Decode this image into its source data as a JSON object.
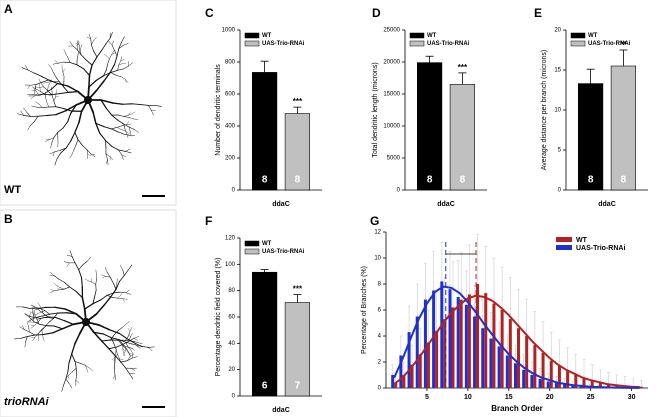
{
  "images": [
    {
      "letter": "A",
      "label": "WT"
    },
    {
      "letter": "B",
      "label": "trioRNAi"
    }
  ],
  "chart_data": [
    {
      "type": "bar",
      "letter": "C",
      "ylabel": "Number of dendritic terminals",
      "categories": [
        "ddaC"
      ],
      "ylim": [
        0,
        1000
      ],
      "yticks": [
        0,
        200,
        400,
        600,
        800,
        1000
      ],
      "series": [
        {
          "name": "WT",
          "color": "#000000",
          "values": [
            735
          ],
          "errors": [
            70
          ],
          "n": [
            "8"
          ]
        },
        {
          "name": "UAS-Trio-RNAi",
          "color": "#c0c0c0",
          "values": [
            478
          ],
          "errors": [
            40
          ],
          "n": [
            "8"
          ],
          "annotation": "***"
        }
      ]
    },
    {
      "type": "bar",
      "letter": "D",
      "ylabel": "Total dendritic length (microns)",
      "categories": [
        "ddaC"
      ],
      "ylim": [
        0,
        25000
      ],
      "yticks": [
        0,
        5000,
        10000,
        15000,
        20000,
        25000
      ],
      "series": [
        {
          "name": "WT",
          "color": "#000000",
          "values": [
            19900
          ],
          "errors": [
            1000
          ],
          "n": [
            "8"
          ]
        },
        {
          "name": "UAS-Trio-RNAi",
          "color": "#c0c0c0",
          "values": [
            16500
          ],
          "errors": [
            1800
          ],
          "n": [
            "8"
          ],
          "annotation": "***"
        }
      ]
    },
    {
      "type": "bar",
      "letter": "E",
      "ylabel": "Average distance per branch (microns)",
      "categories": [
        "ddaC"
      ],
      "ylim": [
        0,
        20
      ],
      "yticks": [
        0,
        5,
        10,
        15,
        20
      ],
      "series": [
        {
          "name": "WT",
          "color": "#000000",
          "values": [
            13.3
          ],
          "errors": [
            1.8
          ],
          "n": [
            "8"
          ]
        },
        {
          "name": "UAS-Trio-RNAi",
          "color": "#c0c0c0",
          "values": [
            15.5
          ],
          "errors": [
            2.0
          ],
          "n": [
            "8"
          ],
          "annotation": "**"
        }
      ]
    },
    {
      "type": "bar",
      "letter": "F",
      "ylabel": "Percentage dendritic field covered (%)",
      "categories": [
        "ddaC"
      ],
      "ylim": [
        0,
        120
      ],
      "yticks": [
        0,
        20,
        40,
        60,
        80,
        100,
        120
      ],
      "series": [
        {
          "name": "WT",
          "color": "#000000",
          "values": [
            94
          ],
          "errors": [
            2
          ],
          "n": [
            "6"
          ]
        },
        {
          "name": "UAS-Trio-RNAi",
          "color": "#c0c0c0",
          "values": [
            71
          ],
          "errors": [
            6
          ],
          "n": [
            "7"
          ],
          "annotation": "***"
        }
      ]
    },
    {
      "type": "distribution",
      "letter": "G",
      "xlabel": "Branch Order",
      "ylabel": "Percentage of Branches (%)",
      "xlim": [
        0,
        32
      ],
      "xticks": [
        5,
        10,
        15,
        20,
        25,
        30
      ],
      "ylim": [
        0,
        12
      ],
      "yticks": [
        0,
        2,
        4,
        6,
        8,
        10,
        12
      ],
      "x": [
        1,
        2,
        3,
        4,
        5,
        6,
        7,
        8,
        9,
        10,
        11,
        12,
        13,
        14,
        15,
        16,
        17,
        18,
        19,
        20,
        21,
        22,
        23,
        24,
        25,
        26,
        27,
        28,
        29,
        30,
        31
      ],
      "series": [
        {
          "name": "WT",
          "color": "#b22222",
          "mean": 11,
          "values": [
            0.4,
            1.0,
            1.8,
            2.6,
            3.5,
            4.4,
            5.3,
            6.2,
            6.8,
            7.2,
            8.0,
            7.3,
            6.5,
            6.0,
            5.3,
            4.6,
            4.0,
            3.3,
            2.7,
            2.1,
            1.7,
            1.3,
            1.0,
            0.8,
            0.6,
            0.4,
            0.3,
            0.2,
            0.2,
            0.1,
            0.1
          ],
          "errors": [
            0.5,
            1.0,
            1.5,
            2.0,
            2.5,
            3.0,
            3.2,
            3.5,
            3.6,
            3.8,
            3.8,
            3.6,
            3.5,
            3.3,
            3.2,
            3.0,
            2.8,
            2.6,
            2.4,
            2.2,
            2.0,
            1.8,
            1.6,
            1.4,
            1.2,
            1.0,
            0.9,
            0.8,
            0.7,
            0.6,
            0.5
          ],
          "fit": [
            0.3,
            0.8,
            1.5,
            2.3,
            3.2,
            4.1,
            5.0,
            5.8,
            6.4,
            6.9,
            7.1,
            7.0,
            6.7,
            6.2,
            5.6,
            4.9,
            4.2,
            3.5,
            2.9,
            2.3,
            1.8,
            1.4,
            1.1,
            0.8,
            0.6,
            0.45,
            0.3,
            0.22,
            0.15,
            0.1,
            0.07
          ]
        },
        {
          "name": "UAS-Trio-RNAi",
          "color": "#1f2fd0",
          "mean": 7.3,
          "values": [
            1.0,
            2.5,
            4.3,
            5.5,
            6.8,
            7.5,
            8.2,
            7.6,
            7.0,
            6.4,
            5.5,
            4.6,
            3.8,
            3.2,
            2.5,
            1.9,
            1.4,
            1.0,
            0.7,
            0.5,
            0.4,
            0.3,
            0.2,
            0.1,
            0.1,
            0.1,
            0,
            0,
            0,
            0,
            0
          ],
          "errors": [
            0.8,
            1.5,
            2.0,
            2.5,
            2.8,
            3.0,
            3.0,
            2.9,
            2.8,
            2.6,
            2.4,
            2.2,
            2.0,
            1.8,
            1.6,
            1.4,
            1.2,
            1.0,
            0.8,
            0.6,
            0.5,
            0.4,
            0.3,
            0.2,
            0.2,
            0.1,
            0.1,
            0.1,
            0.1,
            0.1,
            0.1
          ],
          "fit": [
            0.8,
            2.2,
            3.8,
            5.3,
            6.5,
            7.4,
            7.8,
            7.7,
            7.3,
            6.6,
            5.8,
            4.9,
            4.1,
            3.3,
            2.6,
            2.0,
            1.5,
            1.1,
            0.8,
            0.6,
            0.4,
            0.3,
            0.2,
            0.15,
            0.1,
            0.07,
            0.05,
            0.03,
            0.02,
            0.01,
            0.01
          ]
        }
      ]
    }
  ]
}
